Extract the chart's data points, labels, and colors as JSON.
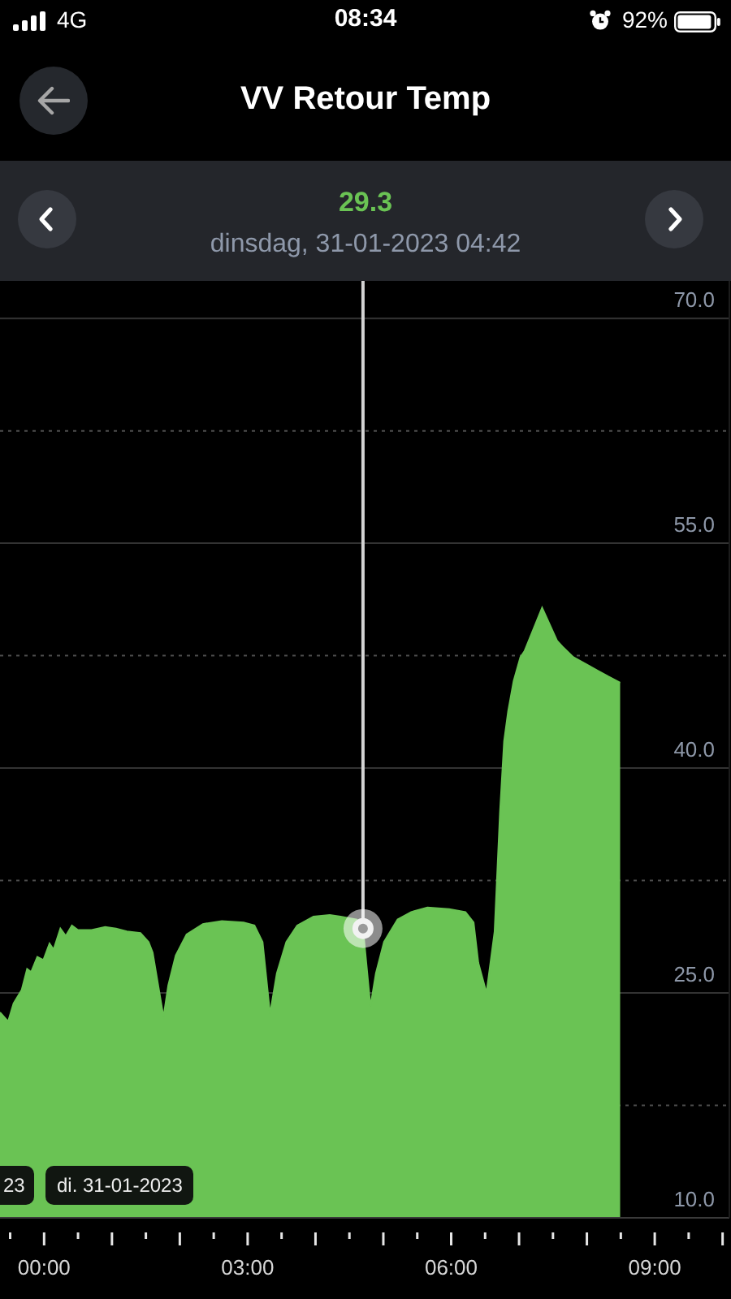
{
  "chart_data": {
    "type": "area",
    "title": "VV Retour Temp",
    "subtitle": "dinsdag, 31-01-2023 04:42",
    "x": [
      -0.65,
      -0.53,
      -0.45,
      -0.33,
      -0.25,
      -0.19,
      -0.1,
      -0.01,
      0.08,
      0.14,
      0.24,
      0.32,
      0.41,
      0.5,
      0.7,
      0.9,
      1.06,
      1.22,
      1.42,
      1.54,
      1.6,
      1.76,
      1.83,
      1.94,
      2.1,
      2.34,
      2.62,
      2.94,
      3.1,
      3.22,
      3.33,
      3.43,
      3.57,
      3.73,
      3.97,
      4.21,
      4.37,
      4.61,
      4.7,
      4.81,
      4.89,
      5.01,
      5.21,
      5.41,
      5.65,
      5.97,
      6.21,
      6.33,
      6.4,
      6.52,
      6.64,
      6.72,
      6.78,
      6.84,
      6.92,
      7.02,
      7.08,
      7.34,
      7.56,
      7.64,
      7.8,
      8.0,
      8.16,
      8.32,
      8.49
    ],
    "values": [
      23.7,
      23.1,
      24.3,
      25.2,
      26.6,
      26.4,
      27.4,
      27.2,
      28.3,
      27.9,
      29.3,
      28.8,
      29.5,
      29.2,
      29.2,
      29.4,
      29.3,
      29.1,
      29.0,
      28.4,
      27.7,
      23.4,
      25.5,
      27.5,
      28.9,
      29.6,
      29.8,
      29.7,
      29.5,
      28.4,
      23.6,
      26.3,
      28.4,
      29.5,
      30.1,
      30.2,
      30.1,
      29.9,
      29.3,
      24.1,
      26.3,
      28.4,
      29.9,
      30.4,
      30.7,
      30.6,
      30.4,
      29.7,
      27.0,
      25.0,
      29.1,
      37.1,
      41.8,
      43.8,
      45.8,
      47.4,
      47.8,
      50.7,
      48.5,
      48.1,
      47.4,
      46.9,
      46.5,
      46.1,
      45.7
    ],
    "color": "#6ac354",
    "xlim": [
      -0.65,
      10.1
    ],
    "xticks": [
      {
        "value": -0.5,
        "label": null
      },
      {
        "value": 0,
        "label": "00:00"
      },
      {
        "value": 0.5,
        "label": null
      },
      {
        "value": 1,
        "label": null
      },
      {
        "value": 1.5,
        "label": null
      },
      {
        "value": 2,
        "label": null
      },
      {
        "value": 2.5,
        "label": null
      },
      {
        "value": 3,
        "label": "03:00"
      },
      {
        "value": 3.5,
        "label": null
      },
      {
        "value": 4,
        "label": null
      },
      {
        "value": 4.5,
        "label": null
      },
      {
        "value": 5,
        "label": null
      },
      {
        "value": 5.5,
        "label": null
      },
      {
        "value": 6,
        "label": "06:00"
      },
      {
        "value": 6.5,
        "label": null
      },
      {
        "value": 7,
        "label": null
      },
      {
        "value": 7.5,
        "label": null
      },
      {
        "value": 8,
        "label": null
      },
      {
        "value": 8.5,
        "label": null
      },
      {
        "value": 9,
        "label": "09:00"
      },
      {
        "value": 9.5,
        "label": null
      },
      {
        "value": 10,
        "label": null
      }
    ],
    "ylim": [
      10,
      72.5
    ],
    "yticks": [
      {
        "value": 10,
        "label": "10.0"
      },
      {
        "value": 17.5,
        "label": null
      },
      {
        "value": 25,
        "label": "25.0"
      },
      {
        "value": 32.5,
        "label": null
      },
      {
        "value": 40,
        "label": "40.0"
      },
      {
        "value": 47.5,
        "label": null
      },
      {
        "value": 55,
        "label": "55.0"
      },
      {
        "value": 62.5,
        "label": null
      },
      {
        "value": 70,
        "label": "70.0"
      }
    ],
    "grid": "y",
    "ref_lines": [
      {
        "axis": "x",
        "value": 4.7,
        "color": "#d4d4d4"
      }
    ],
    "annotations": [
      "4G",
      "08:34",
      "92%",
      "29.3",
      "23",
      "di. 31-01-2023"
    ]
  }
}
